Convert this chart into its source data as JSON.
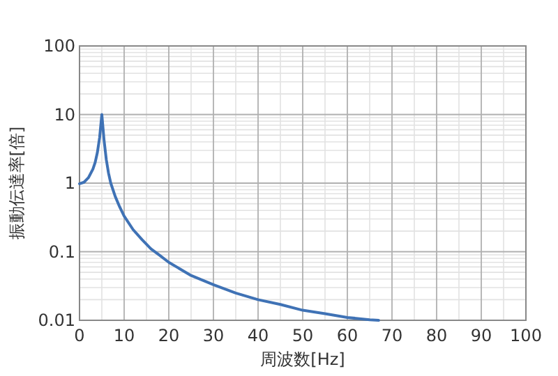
{
  "chart_data": {
    "type": "line",
    "xlabel": "周波数[Hz]",
    "ylabel": "振動伝達率[倍]",
    "log": "y",
    "grid": true,
    "xlim": [
      0,
      100
    ],
    "xticks": [
      0,
      10,
      20,
      30,
      40,
      50,
      60,
      70,
      80,
      90,
      100
    ],
    "ylim": [
      0.01,
      100
    ],
    "yticks": [
      0.01,
      0.1,
      1,
      10,
      100
    ],
    "series": [
      {
        "color": "#3f72b5",
        "x": [
          0,
          1,
          2,
          3,
          3.5,
          4,
          4.5,
          5,
          5.5,
          6,
          6.5,
          7,
          8,
          9,
          10,
          12,
          14,
          16,
          18,
          20,
          25,
          30,
          35,
          40,
          45,
          50,
          55,
          60,
          65,
          67
        ],
        "values": [
          0.98,
          1.03,
          1.2,
          1.6,
          2.0,
          2.8,
          4.6,
          10,
          4.2,
          2.2,
          1.4,
          1.0,
          0.64,
          0.45,
          0.33,
          0.21,
          0.15,
          0.11,
          0.088,
          0.07,
          0.045,
          0.033,
          0.025,
          0.02,
          0.017,
          0.014,
          0.0125,
          0.011,
          0.0102,
          0.01
        ]
      }
    ]
  }
}
